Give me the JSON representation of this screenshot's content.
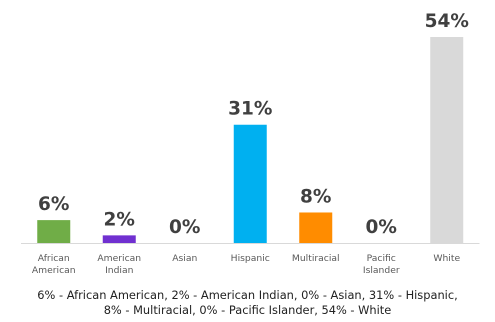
{
  "chart_data": {
    "type": "bar",
    "categories": [
      [
        "African",
        "American"
      ],
      [
        "American",
        "Indian"
      ],
      [
        "Asian"
      ],
      [
        "Hispanic"
      ],
      [
        "Multiracial"
      ],
      [
        "Pacific",
        "Islander"
      ],
      [
        "White"
      ]
    ],
    "values": [
      6,
      2,
      0,
      31,
      8,
      0,
      54
    ],
    "data_labels": [
      "6%",
      "2%",
      "0%",
      "31%",
      "8%",
      "0%",
      "54%"
    ],
    "colors": [
      "#70ad47",
      "#7030d0",
      "#d9d9d9",
      "#00b0f0",
      "#ff8c00",
      "#d9d9d9",
      "#d9d9d9"
    ],
    "ylim": [
      0,
      54
    ],
    "grid": false,
    "title": "",
    "xlabel": "",
    "ylabel": ""
  },
  "caption": {
    "line1": "6% - African American, 2% - American Indian, 0% - Asian, 31% - Hispanic,",
    "line2": "8% - Multiracial, 0% - Pacific Islander, 54% - White"
  }
}
